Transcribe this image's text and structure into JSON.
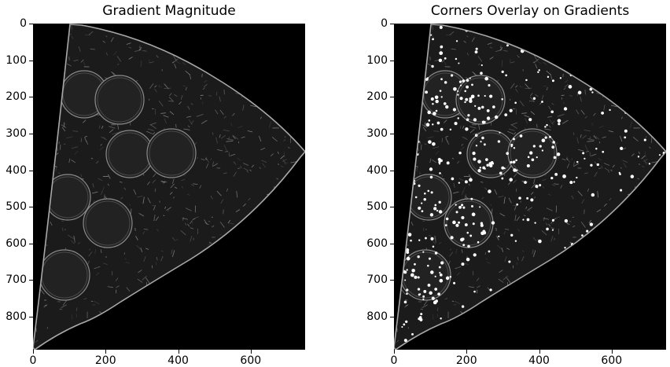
{
  "figure": {
    "panels": [
      {
        "title": "Gradient Magnitude",
        "overlay": false,
        "image_alt": "gradient-magnitude-image"
      },
      {
        "title": "Corners Overlay on Gradients",
        "overlay": true,
        "image_alt": "corners-overlay-image"
      }
    ],
    "y_ticks": [
      "0",
      "100",
      "200",
      "300",
      "400",
      "500",
      "600",
      "700",
      "800"
    ],
    "x_ticks": [
      "0",
      "200",
      "400",
      "600"
    ]
  },
  "chart_data": [
    {
      "type": "heatmap",
      "title": "Gradient Magnitude",
      "xlabel": "",
      "ylabel": "",
      "x_ticks": [
        0,
        200,
        400,
        600
      ],
      "y_ticks": [
        0,
        100,
        200,
        300,
        400,
        500,
        600,
        700,
        800
      ],
      "xlim": [
        0,
        750
      ],
      "ylim": [
        890,
        0
      ],
      "colormap": "gray",
      "background": "#000000",
      "grid": false
    },
    {
      "type": "heatmap",
      "title": "Corners Overlay on Gradients",
      "xlabel": "",
      "ylabel": "",
      "x_ticks": [
        0,
        200,
        400,
        600
      ],
      "y_ticks": [
        0,
        100,
        200,
        300,
        400,
        500,
        600,
        700,
        800
      ],
      "xlim": [
        0,
        750
      ],
      "ylim": [
        890,
        0
      ],
      "colormap": "gray",
      "background": "#000000",
      "marker_color": "#ffffff",
      "grid": false
    }
  ]
}
